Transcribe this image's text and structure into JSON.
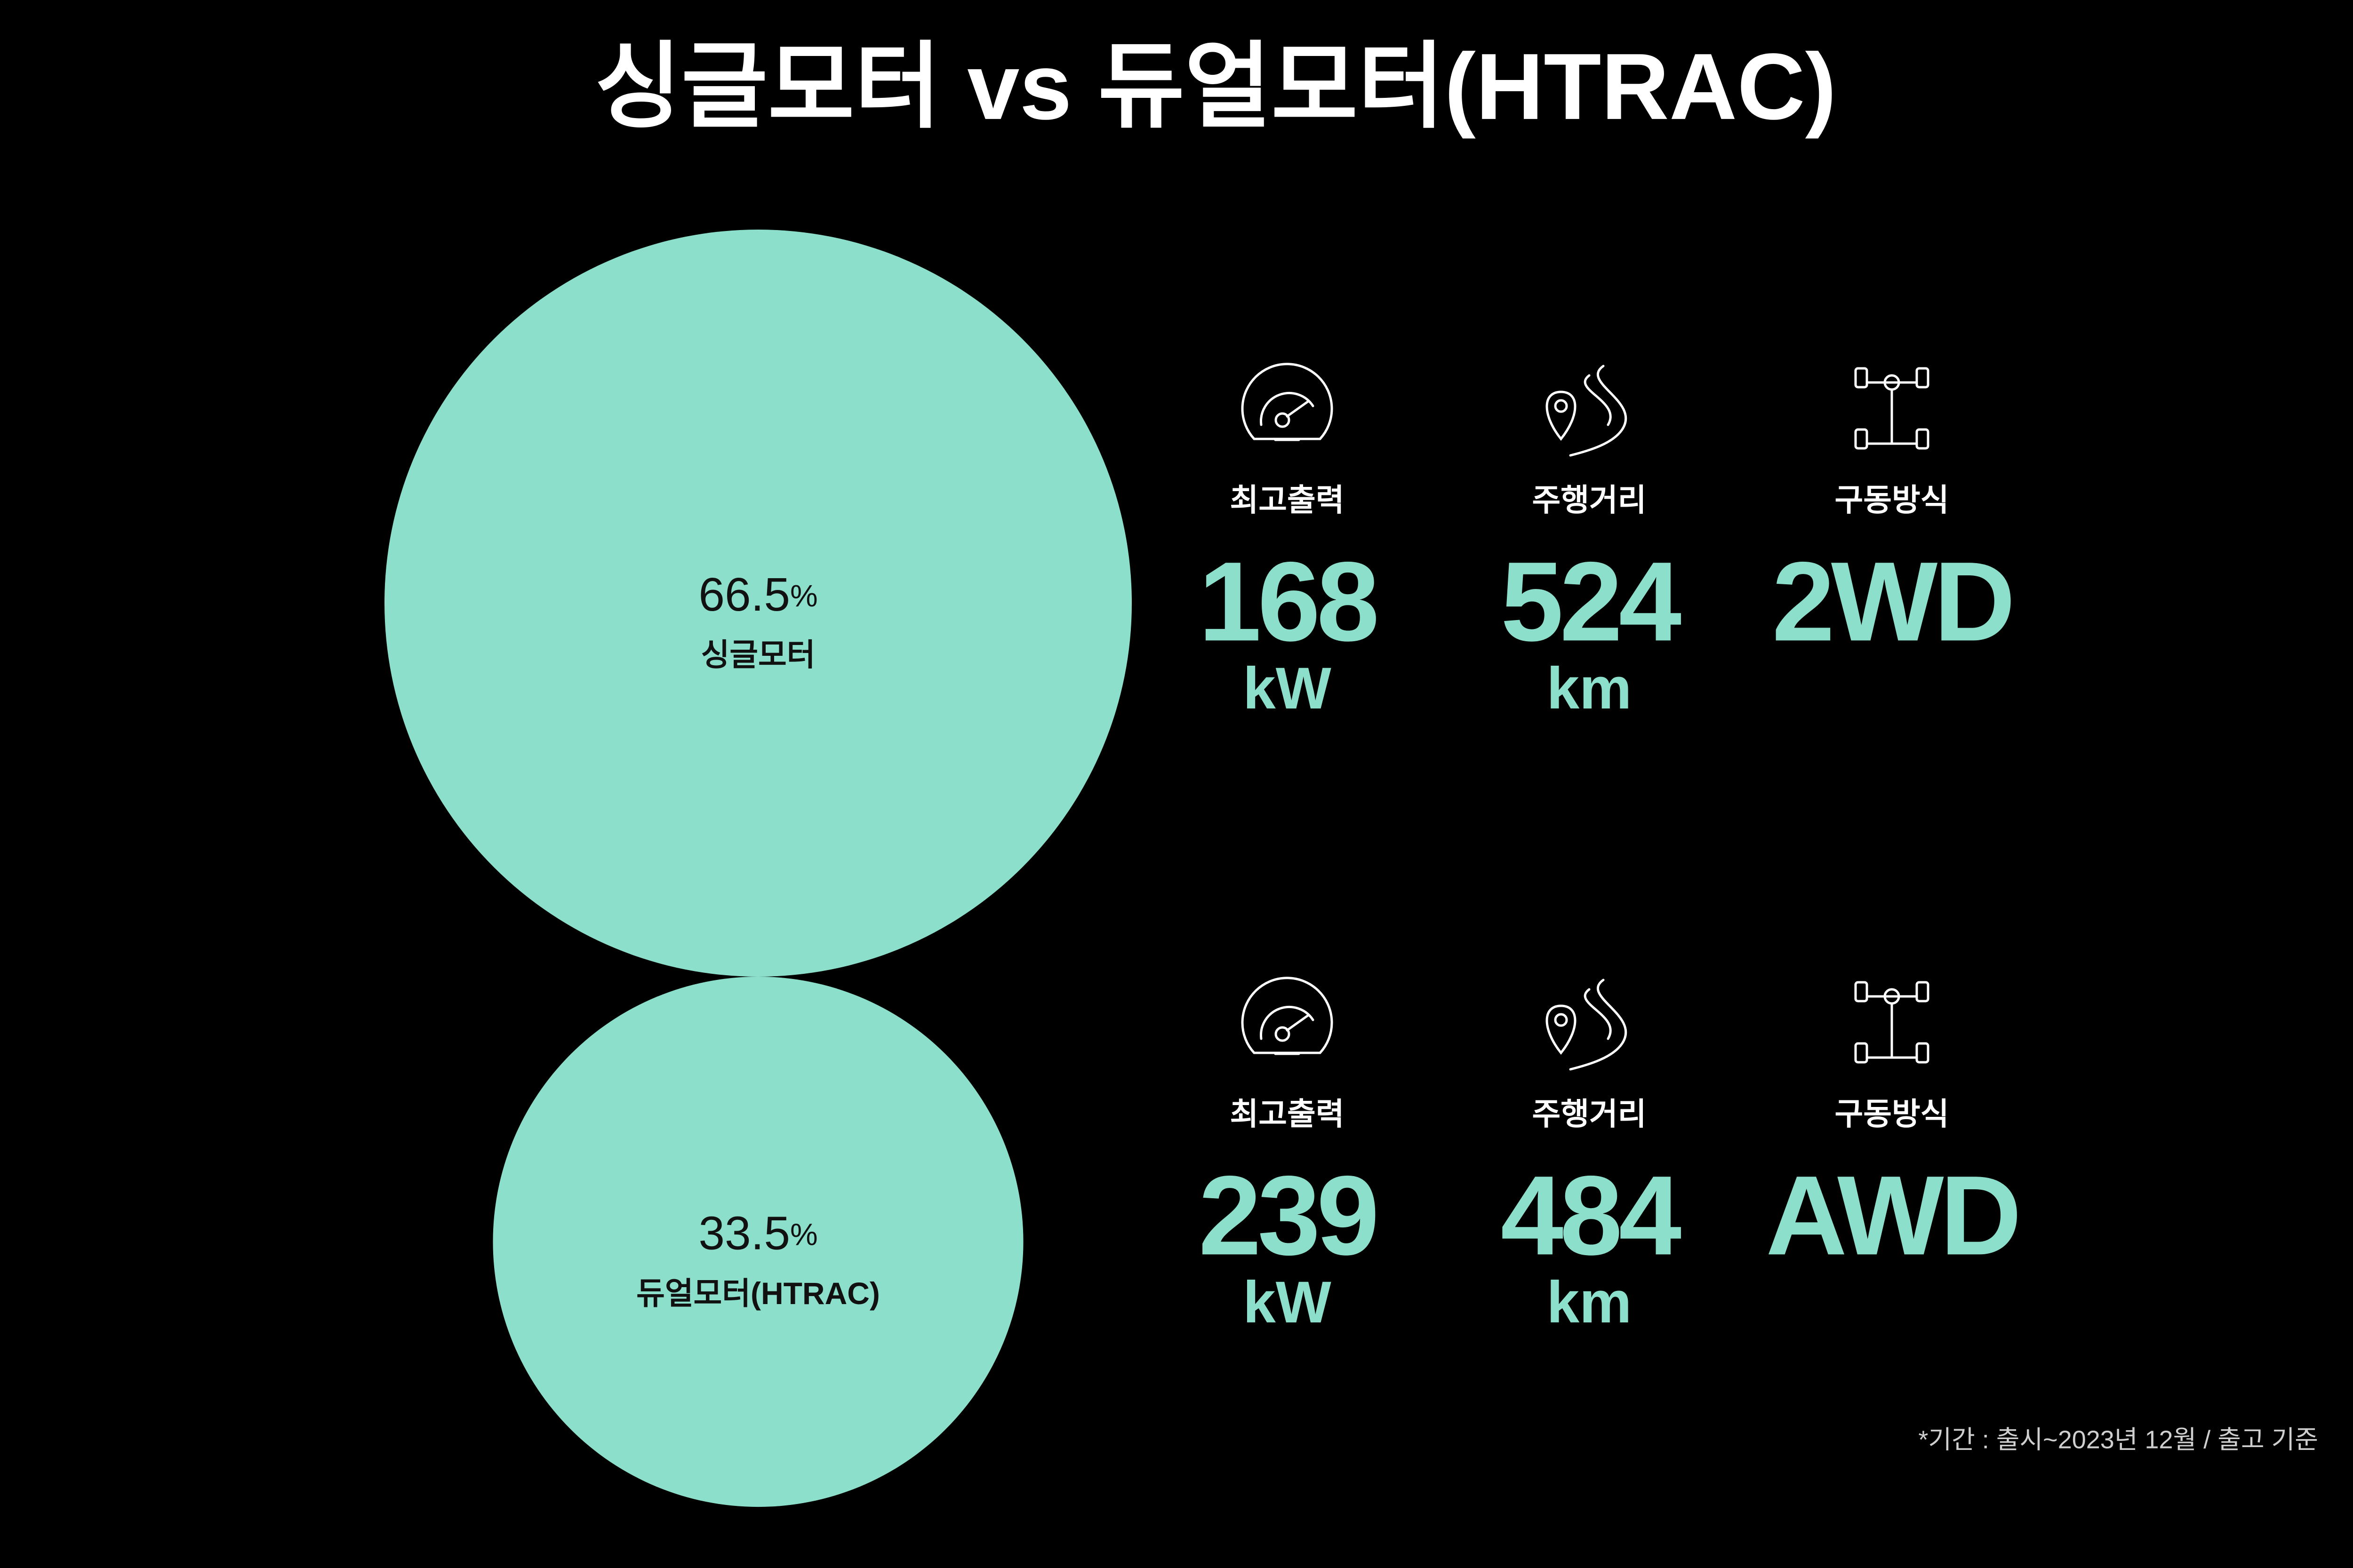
{
  "chart_data": {
    "type": "bubble",
    "title": "싱글모터 vs 듀얼모터(HTRAC)",
    "categories": [
      "싱글모터",
      "듀얼모터(HTRAC)"
    ],
    "values": [
      66.5,
      33.5
    ],
    "unit": "%",
    "color": "#8ce0cb"
  },
  "specs": [
    [
      {
        "label": "최고출력",
        "value": "168",
        "unit": "kW"
      },
      {
        "label": "주행거리",
        "value": "524",
        "unit": "km"
      },
      {
        "label": "구동방식",
        "value": "2WD"
      }
    ],
    [
      {
        "label": "최고출력",
        "value": "239",
        "unit": "kW"
      },
      {
        "label": "주행거리",
        "value": "484",
        "unit": "km"
      },
      {
        "label": "구동방식",
        "value": "AWD"
      }
    ]
  ],
  "footnote": "*기간 : 출시~2023년 12월 / 출고 기준"
}
